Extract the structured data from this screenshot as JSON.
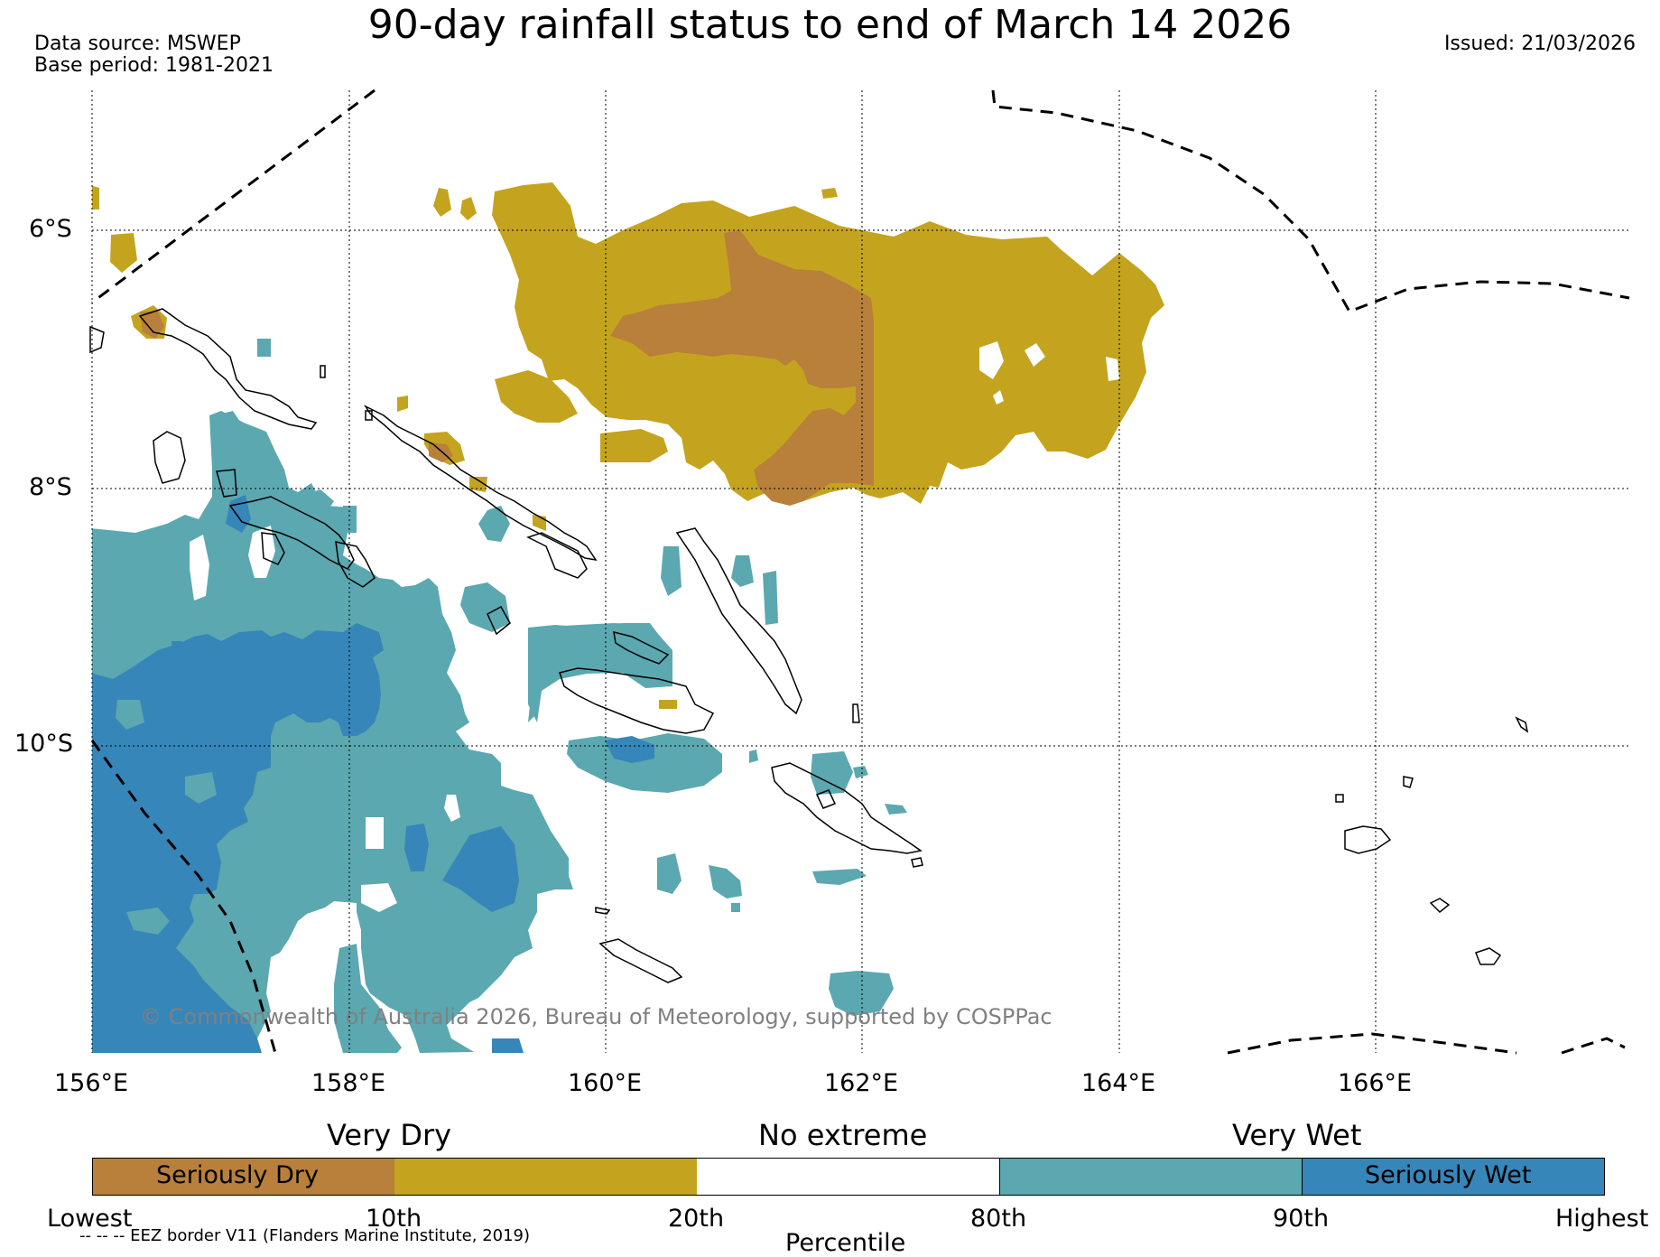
{
  "title": "90-day rainfall status to end of March 14 2026",
  "data_source": "Data source: MSWEP",
  "base_period": "Base period: 1981-2021",
  "issued": "Issued: 21/03/2026",
  "lat_labels": [
    "6°S",
    "8°S",
    "10°S"
  ],
  "lon_labels": [
    "156°E",
    "158°E",
    "160°E",
    "162°E",
    "164°E",
    "166°E"
  ],
  "copyright": "© Commonwealth of Australia 2026, Bureau of Meteorology, supported by COSPPac",
  "legend": {
    "categories": [
      "Very Dry",
      "No extreme",
      "Very Wet"
    ],
    "segments": [
      {
        "label": "Seriously Dry",
        "color": "#b8803a"
      },
      {
        "label": "",
        "color": "#c4a41e"
      },
      {
        "label": "",
        "color": "#ffffff"
      },
      {
        "label": "",
        "color": "#5ba8b0"
      },
      {
        "label": "Seriously Wet",
        "color": "#3686b9"
      }
    ],
    "ticks": [
      "Lowest",
      "10th",
      "20th",
      "80th",
      "90th",
      "Highest"
    ],
    "axis_label": "Percentile",
    "eez_note": "-- -- -- EEZ border V11 (Flanders Marine Institute, 2019)"
  },
  "colors": {
    "seriously_dry": "#b8803a",
    "very_dry": "#c4a41e",
    "very_wet": "#5ba8b0",
    "seriously_wet": "#3686b9"
  }
}
